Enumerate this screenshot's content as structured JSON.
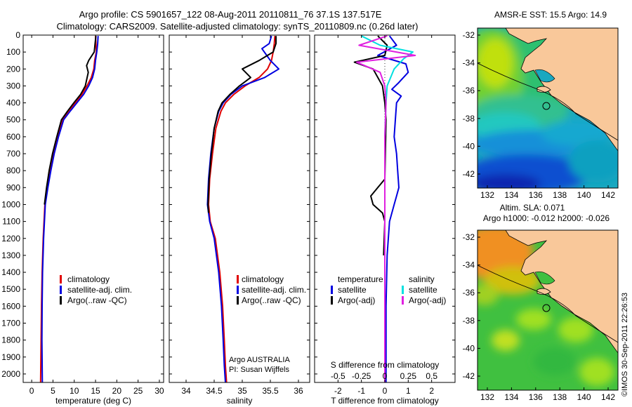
{
  "header": {
    "title_line1": "Argo profile: CS 5901657_122 08-Aug-2011 20110811_76 37.1S 137.517E",
    "title_line2": "Climatology: CARS2009. Satellite-adjusted climatology: synTS_20110809.nc (0.26d later)"
  },
  "colors": {
    "climatology": "#e00000",
    "satellite": "#0000e0",
    "argo": "#000000",
    "salinity_satellite": "#00e0e0",
    "salinity_argo": "#e020e0",
    "land": "#f9c89a",
    "coastline": "#000000"
  },
  "chart_data": [
    {
      "type": "line",
      "id": "temperature",
      "xlabel": "temperature (deg C)",
      "xlim": [
        -2,
        31
      ],
      "xticks": [
        0,
        5,
        10,
        15,
        20,
        25,
        30
      ],
      "xtick_labels": [
        "0",
        "5",
        "10",
        "15",
        "20",
        "25",
        "30"
      ],
      "ylim": [
        0,
        2050
      ],
      "yticks": [
        0,
        100,
        200,
        300,
        400,
        500,
        600,
        700,
        800,
        900,
        1000,
        1100,
        1200,
        1300,
        1400,
        1500,
        1600,
        1700,
        1800,
        1900,
        2000
      ],
      "ytick_labels": [
        "0",
        "100",
        "200",
        "300",
        "400",
        "500",
        "600",
        "700",
        "800",
        "900",
        "1000",
        "1100",
        "1200",
        "1300",
        "1400",
        "1500",
        "1600",
        "1700",
        "1800",
        "1900",
        "2000"
      ],
      "legend": [
        "climatology",
        "satellite-adj. clim.",
        "Argo(..raw -QC)"
      ],
      "series": [
        {
          "name": "climatology",
          "color_key": "climatology",
          "x": [
            15.0,
            15.1,
            15.2,
            14.8,
            14.6,
            14.0,
            13.0,
            11.8,
            10.2,
            8.6,
            7.2,
            6.0,
            5.0,
            4.2,
            3.6,
            3.1,
            2.7,
            2.45,
            2.3,
            2.2,
            2.1
          ],
          "y": [
            5,
            50,
            100,
            150,
            200,
            250,
            300,
            350,
            400,
            450,
            500,
            600,
            700,
            800,
            900,
            1000,
            1200,
            1400,
            1600,
            1800,
            2050
          ]
        },
        {
          "name": "satellite-adj. clim.",
          "color_key": "satellite",
          "x": [
            15.6,
            15.5,
            15.3,
            15.0,
            14.8,
            14.3,
            13.4,
            12.2,
            10.6,
            9.0,
            7.5,
            6.3,
            5.3,
            4.5,
            3.8,
            3.2,
            2.8,
            2.55,
            2.45,
            2.4,
            2.5
          ],
          "y": [
            5,
            50,
            100,
            150,
            200,
            250,
            300,
            350,
            400,
            450,
            500,
            600,
            700,
            800,
            900,
            1000,
            1200,
            1400,
            1600,
            1800,
            2050
          ]
        },
        {
          "name": "Argo(..raw -QC)",
          "color_key": "argo",
          "x": [
            15.1,
            14.9,
            14.7,
            13.4,
            12.9,
            13.3,
            12.6,
            11.5,
            9.9,
            8.4,
            7.0,
            5.9,
            4.9,
            4.1,
            3.5,
            3.0
          ],
          "y": [
            5,
            50,
            100,
            150,
            180,
            220,
            300,
            350,
            400,
            450,
            500,
            600,
            700,
            800,
            900,
            1000
          ]
        }
      ]
    },
    {
      "type": "line",
      "id": "salinity",
      "xlabel": "salinity",
      "xlim": [
        33.7,
        36.2
      ],
      "xticks": [
        34,
        34.5,
        35,
        35.5,
        36
      ],
      "xtick_labels": [
        "34",
        "34.5",
        "35",
        "35.5",
        "36"
      ],
      "ylim": [
        0,
        2050
      ],
      "legend": [
        "climatology",
        "satellite-adj. clim.",
        "Argo(..raw -QC)"
      ],
      "annotation_line1": "Argo AUSTRALIA",
      "annotation_line2": "PI: Susan Wijffels",
      "series": [
        {
          "name": "climatology",
          "color_key": "climatology",
          "x": [
            35.58,
            35.57,
            35.55,
            35.52,
            35.45,
            35.3,
            35.05,
            34.85,
            34.7,
            34.62,
            34.53,
            34.47,
            34.42,
            34.4,
            34.43,
            34.52,
            34.6,
            34.65,
            34.68,
            34.7,
            34.72
          ],
          "y": [
            5,
            50,
            100,
            150,
            200,
            250,
            300,
            350,
            400,
            450,
            550,
            700,
            850,
            1000,
            1100,
            1200,
            1400,
            1600,
            1800,
            1950,
            2050
          ]
        },
        {
          "name": "satellite-adj. clim.",
          "color_key": "satellite",
          "x": [
            35.52,
            35.48,
            35.35,
            35.5,
            35.65,
            35.4,
            35.0,
            34.8,
            34.66,
            34.58,
            34.5,
            34.44,
            34.4,
            34.38,
            34.42,
            34.5,
            34.58,
            34.63,
            34.66,
            34.68,
            34.7
          ],
          "y": [
            5,
            50,
            80,
            150,
            200,
            250,
            300,
            350,
            400,
            450,
            550,
            700,
            850,
            1000,
            1100,
            1200,
            1400,
            1600,
            1800,
            1950,
            2050
          ]
        },
        {
          "name": "Argo(..raw -QC)",
          "color_key": "argo",
          "x": [
            35.6,
            35.6,
            35.55,
            35.3,
            35.0,
            35.15,
            34.95,
            34.78,
            34.64,
            34.57,
            34.5,
            34.45,
            34.41,
            34.39,
            34.4
          ],
          "y": [
            5,
            50,
            100,
            150,
            200,
            250,
            300,
            350,
            400,
            450,
            550,
            700,
            850,
            1000,
            1050
          ]
        }
      ]
    },
    {
      "type": "line",
      "id": "difference",
      "xlabel_bottom": "T difference from climatology",
      "xlabel_top": "S difference from climatology",
      "xlim": [
        -3,
        3
      ],
      "xticks": [
        -2,
        -1,
        0,
        1,
        2
      ],
      "xtick_labels": [
        "-2",
        "-1",
        "0",
        "1",
        "2"
      ],
      "sticks": [
        -2,
        -1,
        0,
        1,
        2
      ],
      "stick_labels": [
        "-0.5",
        "-0.25",
        "0",
        "0.25",
        "0.5"
      ],
      "ylim": [
        0,
        2050
      ],
      "legend_temperature_title": "temperature",
      "legend_salinity_title": "salinity",
      "legend_temperature": [
        "satellite",
        "Argo(-adj)"
      ],
      "legend_salinity": [
        "satellite",
        "Argo(-adj)"
      ],
      "series": [
        {
          "name": "satellite",
          "group": "temperature",
          "color_key": "satellite",
          "x": [
            0.2,
            0.5,
            -0.3,
            0.9,
            1.0,
            0.6,
            0.3,
            0.7,
            0.5,
            0.45,
            0.4,
            0.5,
            0.55,
            0.6,
            0.5,
            0.4,
            0.2,
            0.1,
            0.05,
            0.05
          ],
          "y": [
            5,
            60,
            120,
            170,
            220,
            280,
            320,
            360,
            400,
            500,
            600,
            700,
            800,
            900,
            950,
            1000,
            1100,
            1300,
            1600,
            2050
          ]
        },
        {
          "name": "Argo(-adj)",
          "group": "temperature",
          "color_key": "argo",
          "x": [
            -0.3,
            0.1,
            0.0,
            -1.3,
            -0.5,
            -0.1,
            0.0,
            0.05,
            0.0,
            -0.3,
            -0.6,
            -0.5,
            -0.1,
            0.0,
            -0.05
          ],
          "y": [
            5,
            60,
            120,
            160,
            200,
            300,
            400,
            500,
            850,
            900,
            950,
            1000,
            1050,
            1100,
            1300
          ]
        },
        {
          "name": "satellite",
          "group": "salinity",
          "color_key": "salinity_satellite",
          "x": [
            -1.0,
            -0.2,
            1.2,
            0.8,
            0.4,
            0.1,
            0.05,
            0.0,
            0.0,
            0.0
          ],
          "y": [
            5,
            60,
            100,
            140,
            200,
            300,
            400,
            600,
            1000,
            2050
          ]
        },
        {
          "name": "Argo(-adj)",
          "group": "salinity",
          "color_key": "salinity_argo",
          "x": [
            0.1,
            -1.1,
            1.3,
            -1.2,
            -0.2,
            0.0,
            0.05,
            0.0,
            0.0,
            0.0
          ],
          "y": [
            5,
            60,
            120,
            160,
            220,
            300,
            400,
            600,
            1000,
            2050
          ]
        }
      ]
    }
  ],
  "maps": [
    {
      "id": "sst-map",
      "title": "AMSR-E SST: 15.5 Argo: 14.9",
      "title_line2": "",
      "xticks": [
        "132",
        "134",
        "136",
        "138",
        "140",
        "142"
      ],
      "yticks": [
        "-32",
        "-34",
        "-36",
        "-38",
        "-40",
        "-42"
      ]
    },
    {
      "id": "sla-map",
      "title": "Altim. SLA: 0.071",
      "title_line2": "Argo h1000: -0.012 h2000: -0.026",
      "xticks": [
        "132",
        "134",
        "136",
        "138",
        "140",
        "142"
      ],
      "yticks": [
        "-32",
        "-34",
        "-36",
        "-38",
        "-40",
        "-42"
      ]
    }
  ],
  "footer": {
    "stamp": "©IMOS 30-Sep-2011 22:26:53"
  }
}
